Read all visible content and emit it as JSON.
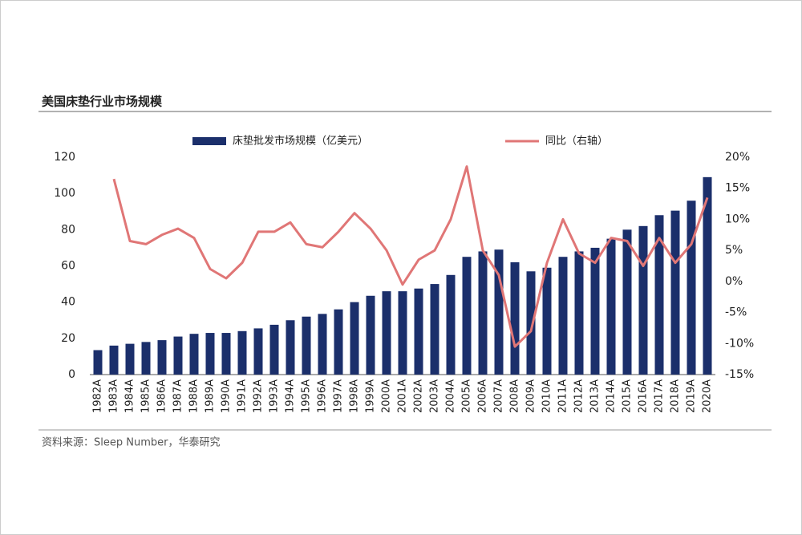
{
  "chart_data": {
    "type": "bar-line",
    "title": "美国床垫行业市场规模",
    "source": "资料来源：Sleep Number，华泰研究",
    "categories": [
      "1982A",
      "1983A",
      "1984A",
      "1985A",
      "1986A",
      "1987A",
      "1988A",
      "1989A",
      "1990A",
      "1991A",
      "1992A",
      "1993A",
      "1994A",
      "1995A",
      "1996A",
      "1997A",
      "1998A",
      "1999A",
      "2000A",
      "2001A",
      "2002A",
      "2003A",
      "2004A",
      "2005A",
      "2006A",
      "2007A",
      "2008A",
      "2009A",
      "2010A",
      "2011A",
      "2012A",
      "2013A",
      "2014A",
      "2015A",
      "2016A",
      "2017A",
      "2018A",
      "2019A",
      "2020A"
    ],
    "series": [
      {
        "name": "床垫批发市场规模（亿美元）",
        "type": "bar",
        "color": "#1b2f6b",
        "values": [
          13.5,
          16,
          17,
          18,
          19,
          21,
          22.5,
          23,
          23,
          24,
          25.5,
          27.5,
          30,
          32,
          33.5,
          36,
          40,
          43.5,
          46,
          46,
          47.5,
          50,
          55,
          65,
          68,
          69,
          62,
          57,
          59,
          65,
          68,
          70,
          75,
          80,
          82,
          88,
          90.5,
          96,
          109
        ]
      },
      {
        "name": "同比（右轴）",
        "type": "line",
        "axis": "y2",
        "color": "#e07676",
        "values": [
          null,
          16.5,
          6.5,
          6,
          7.5,
          8.5,
          7,
          2,
          0.5,
          3,
          8,
          8,
          9.5,
          6,
          5.5,
          8,
          11,
          8.5,
          5,
          -0.5,
          3.5,
          5,
          10,
          18.5,
          5,
          1,
          -10.5,
          -8,
          3,
          10,
          4.5,
          3,
          7,
          6.5,
          2.5,
          7,
          3,
          6,
          13.5
        ]
      }
    ],
    "ylim": [
      0,
      120
    ],
    "yticks": [
      0,
      20,
      40,
      60,
      80,
      100,
      120
    ],
    "y2lim": [
      -15,
      20
    ],
    "y2ticks": [
      {
        "value": -15,
        "label": "-15%"
      },
      {
        "value": -10,
        "label": "-10%"
      },
      {
        "value": -5,
        "label": "-5%"
      },
      {
        "value": 0,
        "label": "0%"
      },
      {
        "value": 5,
        "label": "5%"
      },
      {
        "value": 10,
        "label": "10%"
      },
      {
        "value": 15,
        "label": "15%"
      },
      {
        "value": 20,
        "label": "20%"
      }
    ]
  }
}
